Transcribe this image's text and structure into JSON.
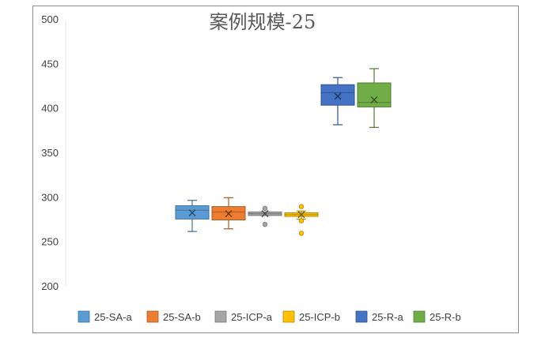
{
  "chart_data": {
    "type": "box",
    "title": "案例规模-25",
    "ylim": [
      200,
      500
    ],
    "yticks": [
      "200",
      "250",
      "300",
      "350",
      "400",
      "450",
      "500"
    ],
    "grid": false,
    "legend_position": "bottom",
    "series": [
      {
        "name": "25-SA-a",
        "color": "#5B9BD5",
        "min": 262,
        "q1": 276,
        "median": 286,
        "q3": 291,
        "max": 297,
        "mean": 283,
        "outliers": []
      },
      {
        "name": "25-SA-b",
        "color": "#ED7D31",
        "min": 265,
        "q1": 275,
        "median": 284,
        "q3": 290,
        "max": 300,
        "mean": 282,
        "outliers": []
      },
      {
        "name": "25-ICP-a",
        "color": "#A5A5A5",
        "min": 280,
        "q1": 280,
        "median": 282,
        "q3": 284,
        "max": 284,
        "mean": 282,
        "outliers": [
          270,
          288
        ]
      },
      {
        "name": "25-ICP-b",
        "color": "#FFC000",
        "min": 276,
        "q1": 279,
        "median": 281,
        "q3": 283,
        "max": 285,
        "mean": 281,
        "outliers": [
          260,
          274,
          290
        ]
      },
      {
        "name": "25-R-a",
        "color": "#4472C4",
        "min": 382,
        "q1": 404,
        "median": 418,
        "q3": 427,
        "max": 435,
        "mean": 414,
        "outliers": []
      },
      {
        "name": "25-R-b",
        "color": "#70AD47",
        "min": 379,
        "q1": 402,
        "median": 407,
        "q3": 429,
        "max": 445,
        "mean": 410,
        "outliers": []
      }
    ]
  }
}
